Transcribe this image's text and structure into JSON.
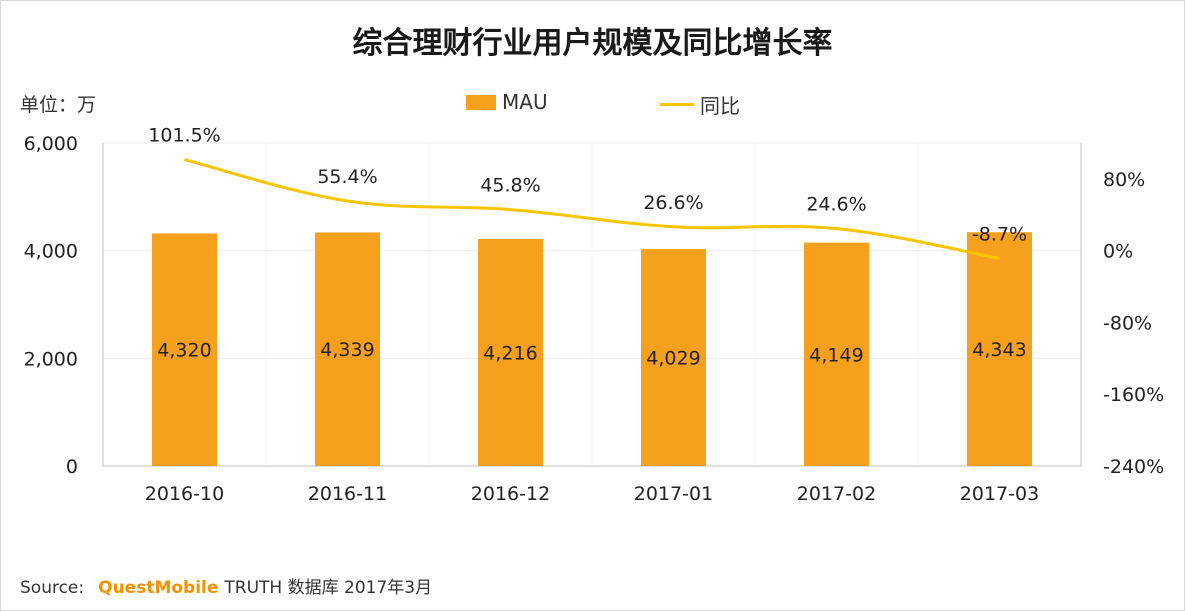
{
  "chart_data": {
    "type": "bar+line",
    "title": "综合理财行业用户规模及同比增长率",
    "unit_label": "单位：万",
    "categories": [
      "2016-10",
      "2016-11",
      "2016-12",
      "2017-01",
      "2017-02",
      "2017-03"
    ],
    "series": [
      {
        "name": "MAU",
        "type": "bar",
        "axis": "left",
        "values": [
          4320,
          4339,
          4216,
          4029,
          4149,
          4343
        ],
        "color": "#f7a01e",
        "labels": [
          "4,320",
          "4,339",
          "4,216",
          "4,029",
          "4,149",
          "4,343"
        ]
      },
      {
        "name": "同比",
        "type": "line",
        "axis": "right",
        "values": [
          101.5,
          55.4,
          45.8,
          26.6,
          24.6,
          -8.7
        ],
        "color": "#f9c500",
        "labels": [
          "101.5%",
          "55.4%",
          "45.8%",
          "26.6%",
          "24.6%",
          "-8.7%"
        ]
      }
    ],
    "left_axis": {
      "range": [
        0,
        6000
      ],
      "ticks": [
        0,
        2000,
        4000,
        6000
      ],
      "tick_labels": [
        "0",
        "2,000",
        "4,000",
        "6,000"
      ]
    },
    "right_axis": {
      "range": [
        -240,
        120
      ],
      "ticks": [
        80,
        0,
        -80,
        -160,
        -240
      ],
      "tick_labels": [
        "80%",
        "0%",
        "-80%",
        "-160%",
        "-240%"
      ]
    },
    "legend": {
      "position": "top-center",
      "bar_label": "MAU",
      "line_label": "同比"
    },
    "grid": true
  },
  "source": {
    "label": "Source:",
    "brand": "QuestMobile",
    "text": "TRUTH 数据库 2017年3月"
  }
}
